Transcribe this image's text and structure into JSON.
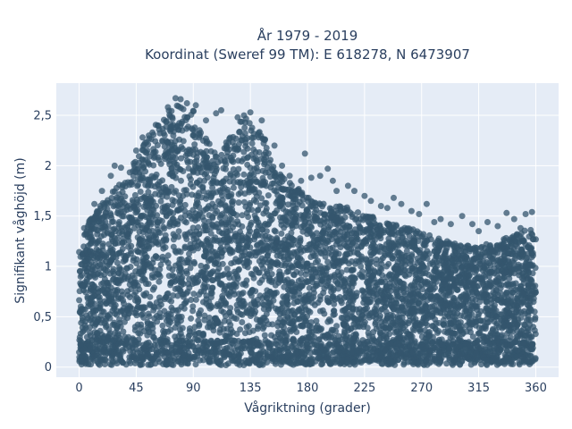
{
  "chart_data": {
    "type": "scatter",
    "title_lines": [
      "År 1979 - 2019",
      "Koordinat (Sweref 99 TM): E 618278, N 6473907"
    ],
    "xlabel": "Vågriktning (grader)",
    "ylabel": "Signifikant våghöjd (m)",
    "xlim": [
      -18,
      378
    ],
    "ylim": [
      -0.1,
      2.82
    ],
    "x_ticks": [
      0,
      45,
      90,
      135,
      180,
      225,
      270,
      315,
      360
    ],
    "x_tick_labels": [
      "0",
      "45",
      "90",
      "135",
      "180",
      "225",
      "270",
      "315",
      "360"
    ],
    "y_ticks": [
      0,
      0.5,
      1,
      1.5,
      2,
      2.5
    ],
    "y_tick_labels": [
      "0",
      "0,5",
      "1",
      "1,5",
      "2",
      "2,5"
    ],
    "grid": true,
    "marker_color": "#34566d",
    "plot_bgcolor": "#e5ecf6",
    "upper_envelope": {
      "x": [
        0,
        10,
        20,
        30,
        40,
        50,
        60,
        70,
        80,
        90,
        100,
        110,
        120,
        130,
        140,
        150,
        160,
        170,
        180,
        190,
        200,
        210,
        220,
        230,
        240,
        250,
        260,
        270,
        280,
        290,
        300,
        310,
        320,
        330,
        340,
        350,
        360
      ],
      "y": [
        1.2,
        1.5,
        1.65,
        1.8,
        1.95,
        2.2,
        2.4,
        2.55,
        2.62,
        2.55,
        2.3,
        2.1,
        2.35,
        2.5,
        2.4,
        2.2,
        1.9,
        1.8,
        1.7,
        1.65,
        1.6,
        1.6,
        1.55,
        1.5,
        1.45,
        1.42,
        1.38,
        1.35,
        1.3,
        1.25,
        1.22,
        1.2,
        1.22,
        1.25,
        1.3,
        1.35,
        1.4
      ]
    },
    "outliers": [
      {
        "x": 76,
        "y": 2.67
      },
      {
        "x": 80,
        "y": 2.66
      },
      {
        "x": 85,
        "y": 2.62
      },
      {
        "x": 70,
        "y": 2.58
      },
      {
        "x": 92,
        "y": 2.6
      },
      {
        "x": 100,
        "y": 2.45
      },
      {
        "x": 112,
        "y": 2.55
      },
      {
        "x": 108,
        "y": 2.52
      },
      {
        "x": 135,
        "y": 2.53
      },
      {
        "x": 130,
        "y": 2.5
      },
      {
        "x": 125,
        "y": 2.48
      },
      {
        "x": 144,
        "y": 2.45
      },
      {
        "x": 178,
        "y": 2.12
      },
      {
        "x": 196,
        "y": 1.97
      },
      {
        "x": 190,
        "y": 1.9
      },
      {
        "x": 183,
        "y": 1.88
      },
      {
        "x": 166,
        "y": 1.9
      },
      {
        "x": 175,
        "y": 1.85
      },
      {
        "x": 212,
        "y": 1.8
      },
      {
        "x": 203,
        "y": 1.75
      },
      {
        "x": 225,
        "y": 1.7
      },
      {
        "x": 230,
        "y": 1.65
      },
      {
        "x": 248,
        "y": 1.68
      },
      {
        "x": 254,
        "y": 1.62
      },
      {
        "x": 238,
        "y": 1.6
      },
      {
        "x": 274,
        "y": 1.62
      },
      {
        "x": 262,
        "y": 1.55
      },
      {
        "x": 268,
        "y": 1.52
      },
      {
        "x": 285,
        "y": 1.47
      },
      {
        "x": 280,
        "y": 1.44
      },
      {
        "x": 293,
        "y": 1.42
      },
      {
        "x": 302,
        "y": 1.5
      },
      {
        "x": 310,
        "y": 1.42
      },
      {
        "x": 322,
        "y": 1.44
      },
      {
        "x": 330,
        "y": 1.4
      },
      {
        "x": 337,
        "y": 1.53
      },
      {
        "x": 343,
        "y": 1.47
      },
      {
        "x": 352,
        "y": 1.52
      },
      {
        "x": 357,
        "y": 1.54
      },
      {
        "x": 348,
        "y": 1.38
      },
      {
        "x": 12,
        "y": 1.62
      },
      {
        "x": 18,
        "y": 1.75
      },
      {
        "x": 25,
        "y": 1.9
      },
      {
        "x": 28,
        "y": 2.0
      },
      {
        "x": 33,
        "y": 1.98
      },
      {
        "x": 45,
        "y": 2.15
      },
      {
        "x": 50,
        "y": 2.28
      },
      {
        "x": 55,
        "y": 2.3
      },
      {
        "x": 8,
        "y": 1.45
      },
      {
        "x": 4,
        "y": 1.38
      },
      {
        "x": 160,
        "y": 2.0
      },
      {
        "x": 154,
        "y": 2.2
      },
      {
        "x": 200,
        "y": 1.85
      },
      {
        "x": 217,
        "y": 1.75
      },
      {
        "x": 243,
        "y": 1.58
      },
      {
        "x": 315,
        "y": 1.35
      }
    ]
  }
}
